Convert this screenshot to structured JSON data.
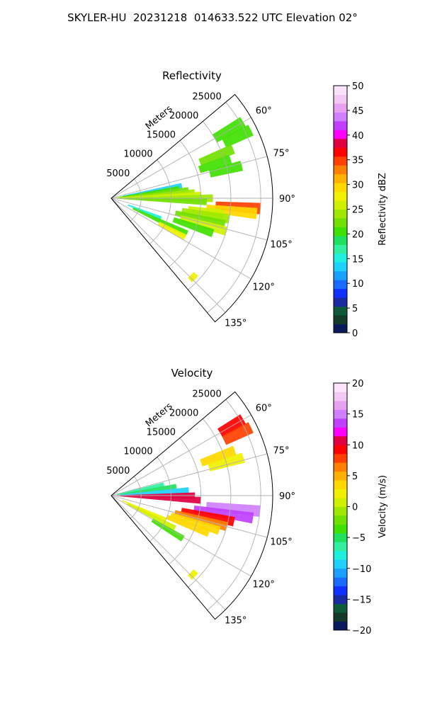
{
  "figure": {
    "suptitle": "SKYLER-HU  20231218  014633.522 UTC Elevation 02°"
  },
  "chart_data": [
    {
      "type": "heatmap",
      "subtype": "polar-sector",
      "title": "Reflectivity",
      "radial_label": "Meters",
      "radial_ticks": [
        5000,
        10000,
        15000,
        20000,
        25000
      ],
      "radial_tick_labels": [
        "5000",
        "10000",
        "15000",
        "20000",
        "25000"
      ],
      "rmax": 27000,
      "angular_range_deg": [
        50,
        140
      ],
      "angular_ticks_deg": [
        60,
        75,
        90,
        105,
        120,
        135
      ],
      "angular_tick_labels": [
        "60°",
        "75°",
        "90°",
        "105°",
        "120°",
        "135°"
      ],
      "grid": true,
      "colorbar": {
        "label": "Reflectivity dBZ",
        "range": [
          0,
          50
        ],
        "ticks": [
          0,
          5,
          10,
          15,
          20,
          25,
          30,
          35,
          40,
          45,
          50
        ],
        "tick_labels": [
          "0",
          "5",
          "10",
          "15",
          "20",
          "25",
          "30",
          "35",
          "40",
          "45",
          "50"
        ],
        "colors": [
          "#0a1a5a",
          "#143a2a",
          "#0f5a3a",
          "#1a2aa0",
          "#1030ff",
          "#1a6aff",
          "#1aa0ff",
          "#20d0ff",
          "#20f0e0",
          "#30f0a0",
          "#20e060",
          "#40e000",
          "#70e000",
          "#a0e800",
          "#d0f000",
          "#f0f000",
          "#ffd800",
          "#ffb000",
          "#ff8000",
          "#ff4000",
          "#ff0000",
          "#e00040",
          "#ff00ff",
          "#c040ff",
          "#d080ff",
          "#e8a0f0",
          "#f4c8f4",
          "#fbe4fb"
        ]
      },
      "cells": [
        {
          "az": 60,
          "r": [
            20000,
            25500
          ],
          "value": 21
        },
        {
          "az": 64,
          "r": [
            21000,
            26000
          ],
          "value": 20
        },
        {
          "az": 68,
          "r": [
            16000,
            22000
          ],
          "value": 22
        },
        {
          "az": 72,
          "r": [
            15500,
            21000
          ],
          "value": 21
        },
        {
          "az": 76,
          "r": [
            17000,
            22500
          ],
          "value": 20
        },
        {
          "az": 80,
          "r": [
            2000,
            12000
          ],
          "value": 14
        },
        {
          "az": 82,
          "r": [
            1500,
            11500
          ],
          "value": 20
        },
        {
          "az": 84,
          "r": [
            1000,
            13000
          ],
          "value": 22
        },
        {
          "az": 86,
          "r": [
            500,
            14000
          ],
          "value": 24
        },
        {
          "az": 88,
          "r": [
            500,
            15000
          ],
          "value": 26
        },
        {
          "az": 90,
          "r": [
            500,
            17000
          ],
          "value": 24
        },
        {
          "az": 92,
          "r": [
            1000,
            16000
          ],
          "value": 22
        },
        {
          "az": 94,
          "r": [
            17500,
            25000
          ],
          "value": 35
        },
        {
          "az": 96,
          "r": [
            16000,
            24500
          ],
          "value": 30
        },
        {
          "az": 98,
          "r": [
            13000,
            19000
          ],
          "value": 26
        },
        {
          "az": 100,
          "r": [
            12000,
            20000
          ],
          "value": 24
        },
        {
          "az": 103,
          "r": [
            11000,
            19500
          ],
          "value": 22
        },
        {
          "az": 106,
          "r": [
            12000,
            20000
          ],
          "value": 25
        },
        {
          "az": 109,
          "r": [
            11000,
            18000
          ],
          "value": 21
        },
        {
          "az": 112,
          "r": [
            3000,
            9000
          ],
          "value": 16
        },
        {
          "az": 115,
          "r": [
            4000,
            14000
          ],
          "value": 20
        },
        {
          "az": 118,
          "r": [
            9000,
            14000
          ],
          "value": 27
        },
        {
          "az": 134,
          "r": [
            18500,
            19500
          ],
          "value": 28
        }
      ]
    },
    {
      "type": "heatmap",
      "subtype": "polar-sector",
      "title": "Velocity",
      "radial_label": "Meters",
      "radial_ticks": [
        5000,
        10000,
        15000,
        20000,
        25000
      ],
      "radial_tick_labels": [
        "5000",
        "10000",
        "15000",
        "20000",
        "25000"
      ],
      "rmax": 27000,
      "angular_range_deg": [
        50,
        140
      ],
      "angular_ticks_deg": [
        60,
        75,
        90,
        105,
        120,
        135
      ],
      "angular_tick_labels": [
        "60°",
        "75°",
        "90°",
        "105°",
        "120°",
        "135°"
      ],
      "grid": true,
      "colorbar": {
        "label": "Velocity (m/s)",
        "range": [
          -20,
          20
        ],
        "ticks": [
          -20,
          -15,
          -10,
          -5,
          0,
          5,
          10,
          15,
          20
        ],
        "tick_labels": [
          "−20",
          "−15",
          "−10",
          "−5",
          "0",
          "5",
          "10",
          "15",
          "20"
        ],
        "colors": [
          "#0a1a5a",
          "#143a2a",
          "#0f5a3a",
          "#1a2aa0",
          "#1030ff",
          "#1a6aff",
          "#1aa0ff",
          "#20d0ff",
          "#20f0e0",
          "#30f0a0",
          "#20e060",
          "#40e000",
          "#70e000",
          "#a0e800",
          "#d0f000",
          "#f0f000",
          "#ffd800",
          "#ffb000",
          "#ff8000",
          "#ff4000",
          "#ff0000",
          "#e00040",
          "#ff00ff",
          "#c040ff",
          "#d080ff",
          "#e8a0f0",
          "#f4c8f4",
          "#fbe4fb"
        ]
      },
      "cells": [
        {
          "az": 60,
          "r": [
            21000,
            25500
          ],
          "value": 9
        },
        {
          "az": 64,
          "r": [
            21000,
            26000
          ],
          "value": 8
        },
        {
          "az": 70,
          "r": [
            16000,
            22000
          ],
          "value": 3
        },
        {
          "az": 74,
          "r": [
            17000,
            23000
          ],
          "value": 2
        },
        {
          "az": 78,
          "r": [
            1000,
            9000
          ],
          "value": -6
        },
        {
          "az": 82,
          "r": [
            1000,
            11000
          ],
          "value": -5
        },
        {
          "az": 86,
          "r": [
            1500,
            13000
          ],
          "value": -10
        },
        {
          "az": 90,
          "r": [
            1000,
            14000
          ],
          "value": 10
        },
        {
          "az": 93,
          "r": [
            500,
            15000
          ],
          "value": 10
        },
        {
          "az": 96,
          "r": [
            16000,
            25000
          ],
          "value": 15
        },
        {
          "az": 99,
          "r": [
            14000,
            24000
          ],
          "value": 14
        },
        {
          "az": 102,
          "r": [
            12000,
            21000
          ],
          "value": 9
        },
        {
          "az": 105,
          "r": [
            11000,
            20000
          ],
          "value": 6
        },
        {
          "az": 108,
          "r": [
            10500,
            19000
          ],
          "value": 3
        },
        {
          "az": 111,
          "r": [
            10000,
            17500
          ],
          "value": 4
        },
        {
          "az": 114,
          "r": [
            2000,
            10000
          ],
          "value": 2
        },
        {
          "az": 117,
          "r": [
            3000,
            12000
          ],
          "value": 1
        },
        {
          "az": 121,
          "r": [
            8000,
            14000
          ],
          "value": -4
        },
        {
          "az": 134,
          "r": [
            18500,
            19500
          ],
          "value": 2
        }
      ]
    }
  ]
}
